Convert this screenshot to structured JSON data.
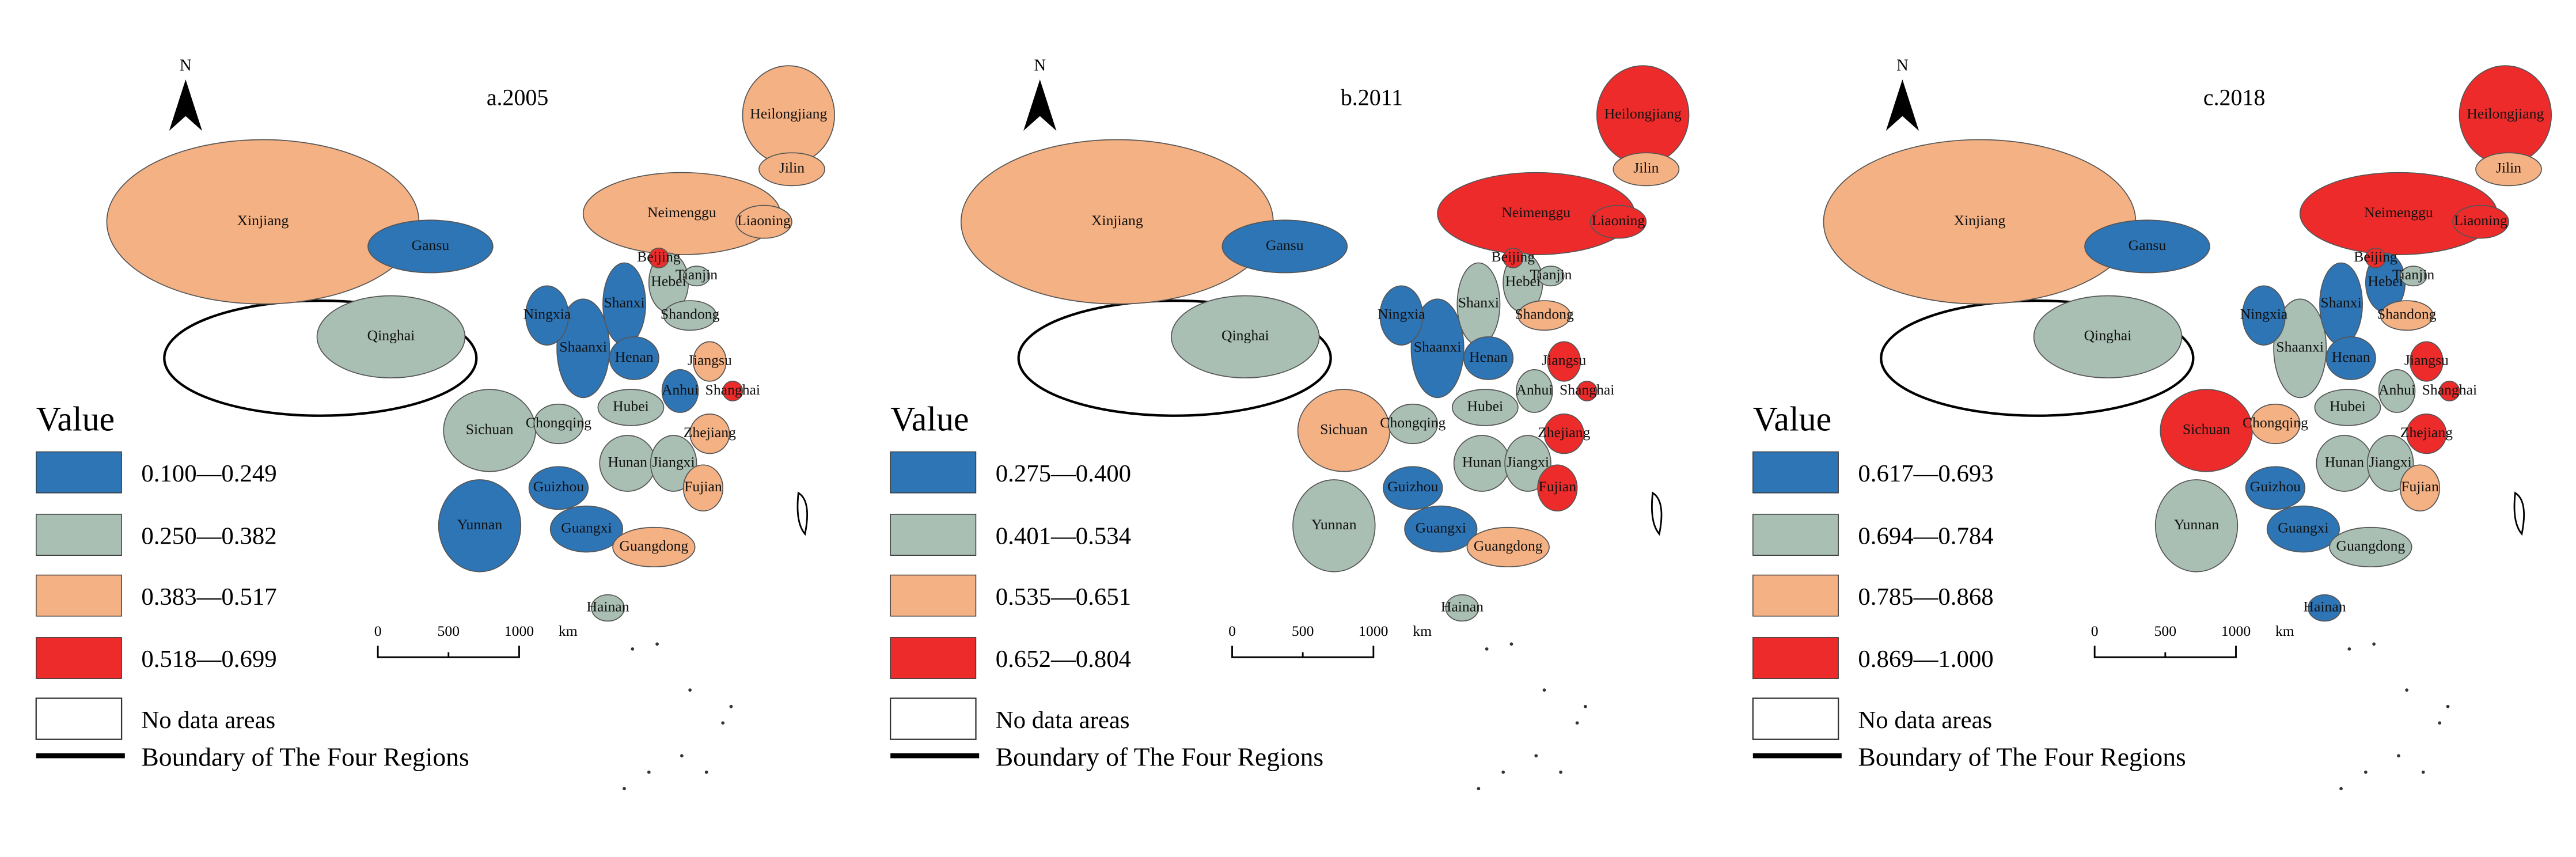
{
  "panels": [
    {
      "title": "a.2005",
      "north": "N",
      "legend": {
        "title": "Value",
        "classes": [
          {
            "label": "0.100—0.249",
            "color": "#2e75b6"
          },
          {
            "label": "0.250—0.382",
            "color": "#a9bfb3"
          },
          {
            "label": "0.383—0.517",
            "color": "#f4b183"
          },
          {
            "label": "0.518—0.699",
            "color": "#ee2b2b"
          }
        ],
        "no_data": "No data areas",
        "boundary": "Boundary of The Four Regions"
      },
      "scale": [
        "0",
        "500",
        "1000",
        "km"
      ],
      "provinces": [
        {
          "name": "Xinjiang",
          "color": "#f4b183"
        },
        {
          "name": "Qinghai",
          "color": "#a9bfb3"
        },
        {
          "name": "Gansu",
          "color": "#2e75b6"
        },
        {
          "name": "Neimenggu",
          "color": "#f4b183"
        },
        {
          "name": "Heilongjiang",
          "color": "#f4b183"
        },
        {
          "name": "Jilin",
          "color": "#f4b183"
        },
        {
          "name": "Liaoning",
          "color": "#f4b183"
        },
        {
          "name": "Sichuan",
          "color": "#a9bfb3"
        },
        {
          "name": "Yunnan",
          "color": "#2e75b6"
        },
        {
          "name": "Chongqing",
          "color": "#a9bfb3"
        },
        {
          "name": "Shaanxi",
          "color": "#2e75b6"
        },
        {
          "name": "Ningxia",
          "color": "#2e75b6"
        },
        {
          "name": "Shanxi",
          "color": "#2e75b6"
        },
        {
          "name": "Hebei",
          "color": "#a9bfb3"
        },
        {
          "name": "Shandong",
          "color": "#a9bfb3"
        },
        {
          "name": "Henan",
          "color": "#2e75b6"
        },
        {
          "name": "Hubei",
          "color": "#a9bfb3"
        },
        {
          "name": "Hunan",
          "color": "#a9bfb3"
        },
        {
          "name": "Jiangxi",
          "color": "#a9bfb3"
        },
        {
          "name": "Guizhou",
          "color": "#2e75b6"
        },
        {
          "name": "Guangxi",
          "color": "#2e75b6"
        },
        {
          "name": "Guangdong",
          "color": "#f4b183"
        },
        {
          "name": "Anhui",
          "color": "#2e75b6"
        },
        {
          "name": "Jiangsu",
          "color": "#f4b183"
        },
        {
          "name": "Zhejiang",
          "color": "#f4b183"
        },
        {
          "name": "Fujian",
          "color": "#f4b183"
        },
        {
          "name": "Hainan",
          "color": "#a9bfb3"
        },
        {
          "name": "Beijing",
          "color": "#ee2b2b"
        },
        {
          "name": "Tianjin",
          "color": "#a9bfb3"
        },
        {
          "name": "Shanghai",
          "color": "#ee2b2b"
        }
      ]
    },
    {
      "title": "b.2011",
      "north": "N",
      "legend": {
        "title": "Value",
        "classes": [
          {
            "label": "0.275—0.400",
            "color": "#2e75b6"
          },
          {
            "label": "0.401—0.534",
            "color": "#a9bfb3"
          },
          {
            "label": "0.535—0.651",
            "color": "#f4b183"
          },
          {
            "label": "0.652—0.804",
            "color": "#ee2b2b"
          }
        ],
        "no_data": "No data areas",
        "boundary": "Boundary of The Four Regions"
      },
      "scale": [
        "0",
        "500",
        "1000",
        "km"
      ],
      "provinces": [
        {
          "name": "Xinjiang",
          "color": "#f4b183"
        },
        {
          "name": "Qinghai",
          "color": "#a9bfb3"
        },
        {
          "name": "Gansu",
          "color": "#2e75b6"
        },
        {
          "name": "Neimenggu",
          "color": "#ee2b2b"
        },
        {
          "name": "Heilongjiang",
          "color": "#ee2b2b"
        },
        {
          "name": "Jilin",
          "color": "#f4b183"
        },
        {
          "name": "Liaoning",
          "color": "#ee2b2b"
        },
        {
          "name": "Sichuan",
          "color": "#f4b183"
        },
        {
          "name": "Yunnan",
          "color": "#a9bfb3"
        },
        {
          "name": "Chongqing",
          "color": "#a9bfb3"
        },
        {
          "name": "Shaanxi",
          "color": "#2e75b6"
        },
        {
          "name": "Ningxia",
          "color": "#2e75b6"
        },
        {
          "name": "Shanxi",
          "color": "#a9bfb3"
        },
        {
          "name": "Hebei",
          "color": "#a9bfb3"
        },
        {
          "name": "Shandong",
          "color": "#f4b183"
        },
        {
          "name": "Henan",
          "color": "#2e75b6"
        },
        {
          "name": "Hubei",
          "color": "#a9bfb3"
        },
        {
          "name": "Hunan",
          "color": "#a9bfb3"
        },
        {
          "name": "Jiangxi",
          "color": "#a9bfb3"
        },
        {
          "name": "Guizhou",
          "color": "#2e75b6"
        },
        {
          "name": "Guangxi",
          "color": "#2e75b6"
        },
        {
          "name": "Guangdong",
          "color": "#f4b183"
        },
        {
          "name": "Anhui",
          "color": "#a9bfb3"
        },
        {
          "name": "Jiangsu",
          "color": "#ee2b2b"
        },
        {
          "name": "Zhejiang",
          "color": "#ee2b2b"
        },
        {
          "name": "Fujian",
          "color": "#ee2b2b"
        },
        {
          "name": "Hainan",
          "color": "#a9bfb3"
        },
        {
          "name": "Beijing",
          "color": "#ee2b2b"
        },
        {
          "name": "Tianjin",
          "color": "#a9bfb3"
        },
        {
          "name": "Shanghai",
          "color": "#ee2b2b"
        }
      ]
    },
    {
      "title": "c.2018",
      "north": "N",
      "legend": {
        "title": "Value",
        "classes": [
          {
            "label": "0.617—0.693",
            "color": "#2e75b6"
          },
          {
            "label": "0.694—0.784",
            "color": "#a9bfb3"
          },
          {
            "label": "0.785—0.868",
            "color": "#f4b183"
          },
          {
            "label": "0.869—1.000",
            "color": "#ee2b2b"
          }
        ],
        "no_data": "No data areas",
        "boundary": "Boundary of The Four Regions"
      },
      "scale": [
        "0",
        "500",
        "1000",
        "km"
      ],
      "provinces": [
        {
          "name": "Xinjiang",
          "color": "#f4b183"
        },
        {
          "name": "Qinghai",
          "color": "#a9bfb3"
        },
        {
          "name": "Gansu",
          "color": "#2e75b6"
        },
        {
          "name": "Neimenggu",
          "color": "#ee2b2b"
        },
        {
          "name": "Heilongjiang",
          "color": "#ee2b2b"
        },
        {
          "name": "Jilin",
          "color": "#f4b183"
        },
        {
          "name": "Liaoning",
          "color": "#ee2b2b"
        },
        {
          "name": "Sichuan",
          "color": "#ee2b2b"
        },
        {
          "name": "Yunnan",
          "color": "#a9bfb3"
        },
        {
          "name": "Chongqing",
          "color": "#f4b183"
        },
        {
          "name": "Shaanxi",
          "color": "#a9bfb3"
        },
        {
          "name": "Ningxia",
          "color": "#2e75b6"
        },
        {
          "name": "Shanxi",
          "color": "#2e75b6"
        },
        {
          "name": "Hebei",
          "color": "#2e75b6"
        },
        {
          "name": "Shandong",
          "color": "#f4b183"
        },
        {
          "name": "Henan",
          "color": "#2e75b6"
        },
        {
          "name": "Hubei",
          "color": "#a9bfb3"
        },
        {
          "name": "Hunan",
          "color": "#a9bfb3"
        },
        {
          "name": "Jiangxi",
          "color": "#a9bfb3"
        },
        {
          "name": "Guizhou",
          "color": "#2e75b6"
        },
        {
          "name": "Guangxi",
          "color": "#2e75b6"
        },
        {
          "name": "Guangdong",
          "color": "#a9bfb3"
        },
        {
          "name": "Anhui",
          "color": "#a9bfb3"
        },
        {
          "name": "Jiangsu",
          "color": "#ee2b2b"
        },
        {
          "name": "Zhejiang",
          "color": "#ee2b2b"
        },
        {
          "name": "Fujian",
          "color": "#f4b183"
        },
        {
          "name": "Hainan",
          "color": "#2e75b6"
        },
        {
          "name": "Beijing",
          "color": "#ee2b2b"
        },
        {
          "name": "Tianjin",
          "color": "#a9bfb3"
        },
        {
          "name": "Shanghai",
          "color": "#ee2b2b"
        }
      ]
    }
  ]
}
